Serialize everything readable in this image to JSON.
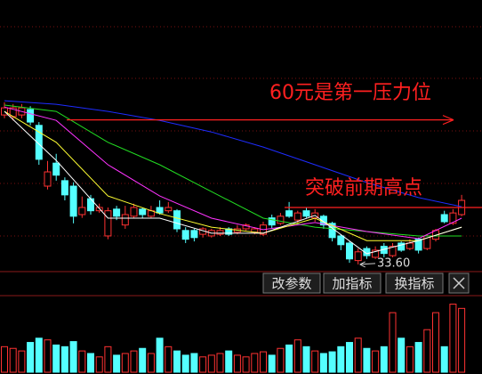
{
  "chart_data": {
    "type": "candlestick",
    "open": [
      60.9,
      60.6,
      60.9,
      61.9,
      59.0,
      47.9,
      52.1,
      48.9,
      47.9,
      42.7,
      45.6,
      43.4,
      38.8,
      43.7,
      40.8,
      42.4,
      43.7,
      42.4,
      44.0,
      43.4,
      43.4,
      39.8,
      39.8,
      39.1,
      38.8,
      39.1,
      40.1,
      39.5,
      40.1,
      39.5,
      39.1,
      42.1,
      41.1,
      43.4,
      41.7,
      43.4,
      42.1,
      42.4,
      41.1,
      38.8,
      37.5,
      34.3,
      36.5,
      34.9,
      36.9,
      35.2,
      37.5,
      36.5,
      38.2,
      36.5,
      38.2,
      42.7,
      41.1,
      42.7
    ],
    "close": [
      62.2,
      62.2,
      62.2,
      59.6,
      52.8,
      50.5,
      49.9,
      46.3,
      42.4,
      44.0,
      43.4,
      44.0,
      43.4,
      42.4,
      42.7,
      44.0,
      42.7,
      43.4,
      43.0,
      44.0,
      40.1,
      38.2,
      38.5,
      40.1,
      39.8,
      39.8,
      39.1,
      40.1,
      40.8,
      40.1,
      40.8,
      40.8,
      42.4,
      42.4,
      43.0,
      42.4,
      43.0,
      40.8,
      38.5,
      37.2,
      34.6,
      35.9,
      35.2,
      36.2,
      35.6,
      36.9,
      36.2,
      37.5,
      36.2,
      38.8,
      39.8,
      41.4,
      43.0,
      45.3
    ],
    "high": [
      63.2,
      62.9,
      62.9,
      62.5,
      59.6,
      52.5,
      53.8,
      49.5,
      48.6,
      46.0,
      46.3,
      44.7,
      44.0,
      44.3,
      44.3,
      44.7,
      44.0,
      44.3,
      45.3,
      45.0,
      43.7,
      40.4,
      40.1,
      40.4,
      40.1,
      40.4,
      40.4,
      40.8,
      41.1,
      40.4,
      41.4,
      42.7,
      43.0,
      45.0,
      43.4,
      44.0,
      43.7,
      42.7,
      41.4,
      39.1,
      37.8,
      36.5,
      36.9,
      36.9,
      37.5,
      37.5,
      37.8,
      38.2,
      38.5,
      39.1,
      40.1,
      43.4,
      43.7,
      46.3
    ],
    "low": [
      60.3,
      59.9,
      60.3,
      59.0,
      51.8,
      47.3,
      48.9,
      45.3,
      41.1,
      42.1,
      42.7,
      43.0,
      38.2,
      41.7,
      40.1,
      42.1,
      42.1,
      42.1,
      42.7,
      43.0,
      39.5,
      37.5,
      37.8,
      38.5,
      38.5,
      38.8,
      38.8,
      39.1,
      39.8,
      39.1,
      38.8,
      40.1,
      40.8,
      42.1,
      41.1,
      42.1,
      41.4,
      40.1,
      37.8,
      36.2,
      33.9,
      33.6,
      34.6,
      34.6,
      34.9,
      34.9,
      35.9,
      36.2,
      35.6,
      36.2,
      37.8,
      41.1,
      40.8,
      42.4
    ],
    "volume": [
      30,
      28,
      25,
      35,
      40,
      38,
      32,
      30,
      36,
      25,
      22,
      18,
      30,
      20,
      22,
      25,
      28,
      22,
      40,
      30,
      25,
      20,
      22,
      18,
      20,
      22,
      25,
      20,
      18,
      22,
      24,
      20,
      28,
      32,
      38,
      30,
      25,
      22,
      24,
      30,
      35,
      40,
      28,
      25,
      30,
      70,
      40,
      30,
      35,
      50,
      70,
      30,
      80,
      75
    ],
    "up_color": "#ff3232",
    "down_color": "#54ffff",
    "ylim": [
      33.1,
      81.9
    ],
    "vlim": [
      0,
      90
    ],
    "ma_x": [
      0,
      6,
      12,
      18,
      24,
      30,
      36,
      42,
      48,
      53
    ],
    "series": [
      {
        "color": "#1e2cff",
        "values": [
          63.5,
          62.85,
          61.55,
          59.9,
          57.8,
          55.05,
          51.8,
          48.55,
          45.8,
          44.15
        ]
      },
      {
        "color": "#22dd22",
        "values": [
          62.7,
          61.55,
          55.9,
          51.8,
          46.9,
          42.05,
          40.4,
          39.6,
          38.8,
          38.8
        ]
      },
      {
        "color": "#ff33ff",
        "values": [
          62.35,
          59.9,
          51.8,
          46.1,
          42.05,
          39.95,
          41.25,
          39.6,
          38.3,
          42.05
        ]
      },
      {
        "color": "#ffff33",
        "values": [
          61.55,
          55.9,
          46.1,
          42.9,
          40.4,
          39.3,
          42.05,
          37.95,
          37.95,
          40.4
        ]
      },
      {
        "color": "#ffffff",
        "values": [
          61.55,
          52.6,
          42.05,
          42.05,
          39.3,
          39.3,
          42.55,
          35.55,
          37.95,
          40.4
        ]
      }
    ],
    "levels": [
      {
        "text": "60元是第一压力位",
        "value": 60
      },
      {
        "text": "突破前期高点",
        "value": 44
      }
    ],
    "level_color": "#ff2020",
    "low_label": {
      "value": 33.6,
      "label": "33.60"
    }
  },
  "toolbar": [
    "改参数",
    "加指标",
    "换指标"
  ]
}
